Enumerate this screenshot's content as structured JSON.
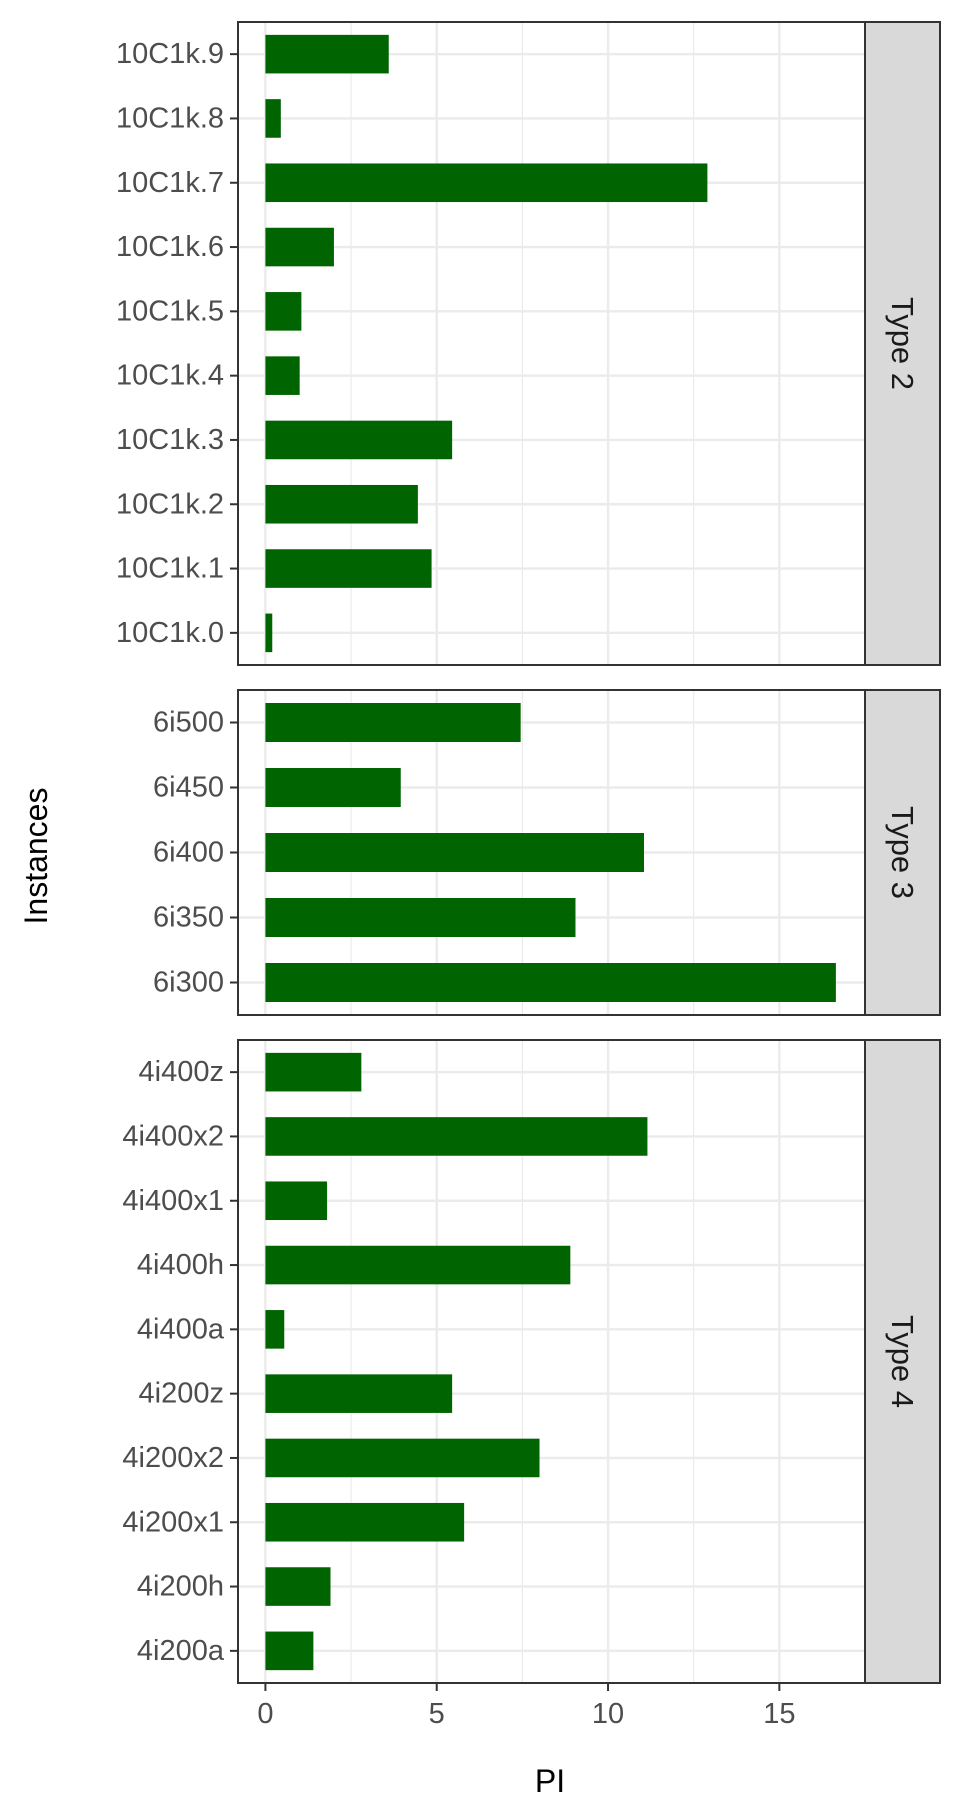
{
  "chart_data": {
    "type": "bar",
    "orientation": "horizontal",
    "xlabel": "PI",
    "ylabel": "Instances",
    "xlim": [
      -0.8,
      17.5
    ],
    "x_ticks": [
      0,
      5,
      10,
      15
    ],
    "grid": true,
    "bar_color": "#006400",
    "strip_color": "#d9d9d9",
    "grid_color": "#ebebeb",
    "panels": [
      {
        "name": "Type 2",
        "categories": [
          "10C1k.9",
          "10C1k.8",
          "10C1k.7",
          "10C1k.6",
          "10C1k.5",
          "10C1k.4",
          "10C1k.3",
          "10C1k.2",
          "10C1k.1",
          "10C1k.0"
        ],
        "values": [
          3.6,
          0.45,
          12.9,
          2.0,
          1.05,
          1.0,
          5.45,
          4.45,
          4.85,
          0.2
        ]
      },
      {
        "name": "Type 3",
        "categories": [
          "6i500",
          "6i450",
          "6i400",
          "6i350",
          "6i300"
        ],
        "values": [
          7.45,
          3.95,
          11.05,
          9.05,
          16.65
        ]
      },
      {
        "name": "Type 4",
        "categories": [
          "4i400z",
          "4i400x2",
          "4i400x1",
          "4i400h",
          "4i400a",
          "4i200z",
          "4i200x2",
          "4i200x1",
          "4i200h",
          "4i200a"
        ],
        "values": [
          2.8,
          11.15,
          1.8,
          8.9,
          0.55,
          5.45,
          8.0,
          5.8,
          1.9,
          1.4
        ]
      }
    ]
  }
}
